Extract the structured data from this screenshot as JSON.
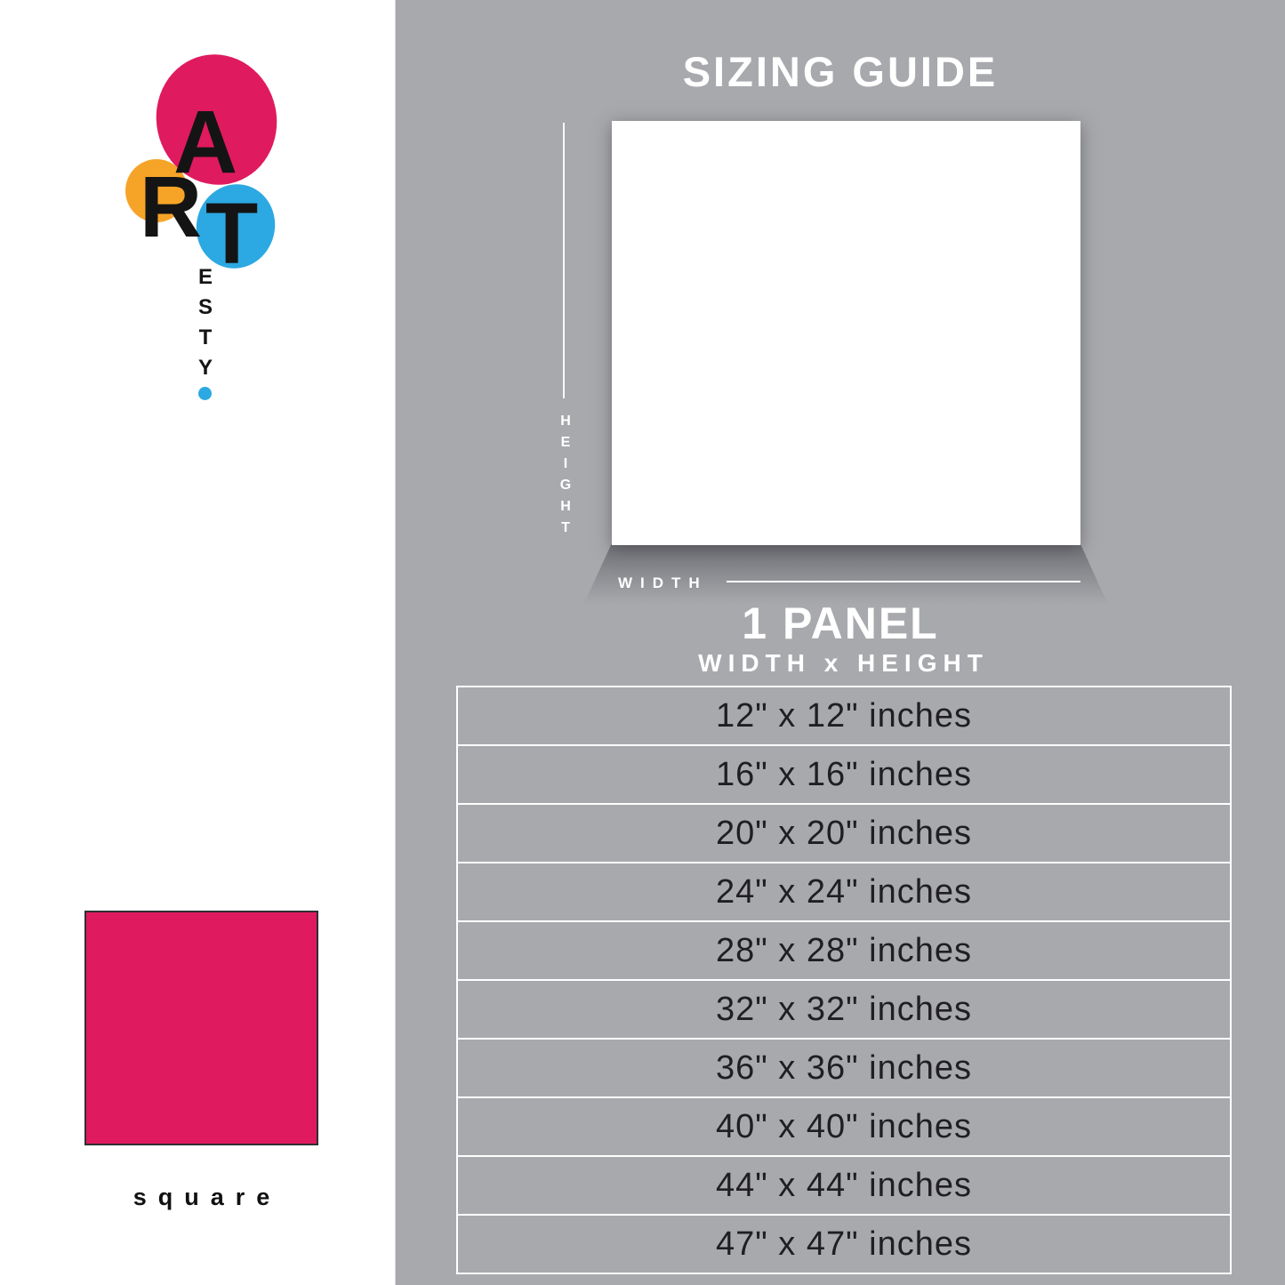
{
  "logo": {
    "letters": [
      "A",
      "R",
      "T"
    ],
    "vertical": [
      "E",
      "S",
      "T",
      "Y"
    ]
  },
  "swatch": {
    "label": "square"
  },
  "guide": {
    "title": "SIZING GUIDE",
    "height_letters": [
      "H",
      "E",
      "I",
      "G",
      "H",
      "T"
    ],
    "width_label": "WIDTH",
    "panel_count_label": "1 PANEL",
    "dimension_label": "WIDTH x HEIGHT",
    "sizes": [
      "12\" x 12\" inches",
      "16\" x 16\" inches",
      "20\" x 20\" inches",
      "24\" x 24\" inches",
      "28\" x 28\" inches",
      "32\" x 32\" inches",
      "36\" x 36\" inches",
      "40\" x 40\" inches",
      "44\" x 44\" inches",
      "47\" x 47\" inches"
    ]
  },
  "colors": {
    "brand_pink": "#e01a5e",
    "brand_orange": "#f6a428",
    "brand_blue": "#2ca9e2",
    "background_gray": "#a8a9ad",
    "text_dark": "#1f1f23",
    "text_white": "#ffffff"
  }
}
